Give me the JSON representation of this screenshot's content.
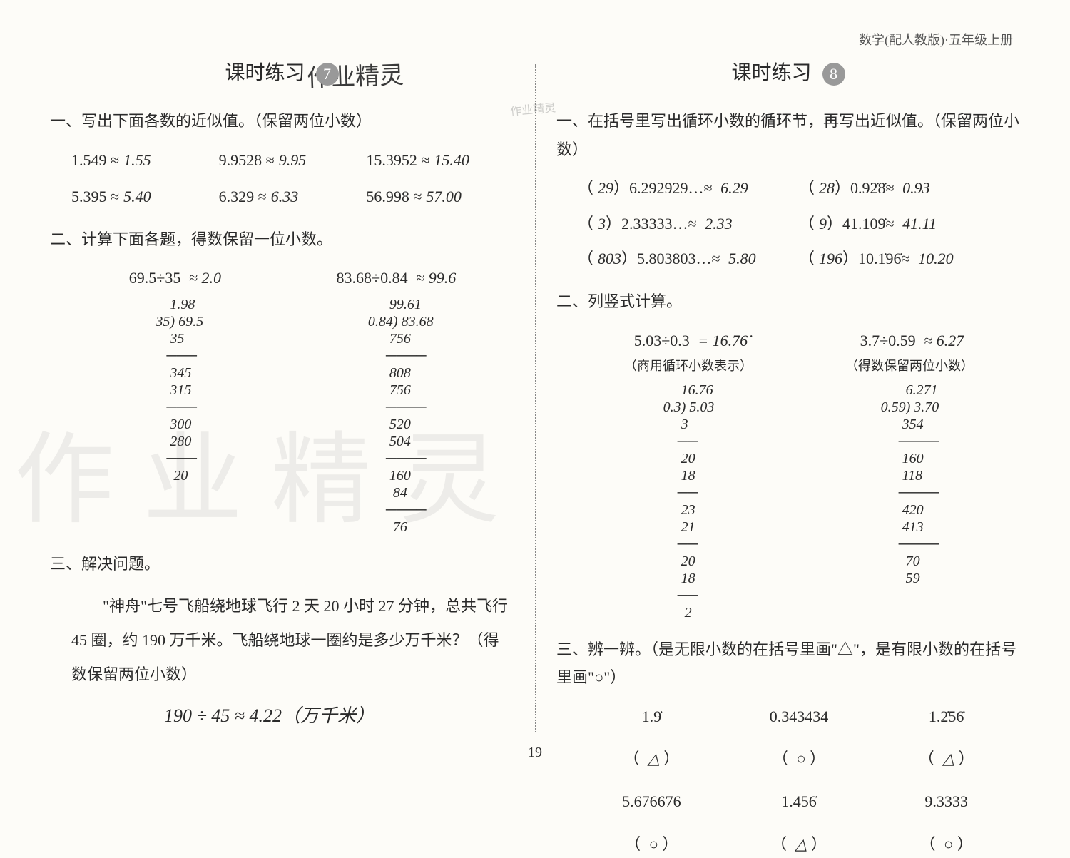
{
  "header": {
    "book_title": "数学(配人教版)·五年级上册"
  },
  "page_number": "19",
  "watermark_text": "作业精灵",
  "handwritten_header": "作业精灵",
  "stamp_text": "作业精灵",
  "left": {
    "lesson_label": "课时练习",
    "lesson_number": "7",
    "section1": {
      "title": "一、写出下面各数的近似值。（保留两位小数）",
      "items": [
        {
          "expr": "1.549 ≈",
          "ans": "1.55"
        },
        {
          "expr": "9.9528 ≈",
          "ans": "9.95"
        },
        {
          "expr": "15.3952 ≈",
          "ans": "15.40"
        },
        {
          "expr": "5.395 ≈",
          "ans": "5.40"
        },
        {
          "expr": "6.329 ≈",
          "ans": "6.33"
        },
        {
          "expr": "56.998 ≈",
          "ans": "57.00"
        }
      ]
    },
    "section2": {
      "title": "二、计算下面各题，得数保留一位小数。",
      "problems": [
        {
          "expr": "69.5÷35",
          "ans": "≈ 2.0",
          "work": "    1.98\n35) 69.5\n    35\n   ───\n    345\n    315\n   ───\n    300\n    280\n   ───\n     20"
        },
        {
          "expr": "83.68÷0.84",
          "ans": "≈ 99.6",
          "work": "      99.61\n0.84) 83.68\n      756\n     ────\n      808\n      756\n     ────\n      520\n      504\n     ────\n      160\n       84\n     ────\n       76"
        }
      ]
    },
    "section3": {
      "title": "三、解决问题。",
      "text": "\"神舟\"七号飞船绕地球飞行 2 天 20 小时 27 分钟，总共飞行 45 圈，约 190 万千米。飞船绕地球一圈约是多少万千米？（得数保留两位小数）",
      "answer": "190 ÷ 45 ≈ 4.22（万千米）"
    }
  },
  "right": {
    "lesson_label": "课时练习",
    "lesson_number": "8",
    "section1": {
      "title": "一、在括号里写出循环小数的循环节，再写出近似值。（保留两位小数）",
      "items": [
        {
          "paren": "29",
          "expr": "6.292929…≈",
          "ans": "6.29"
        },
        {
          "paren": "28",
          "expr": "0.92̇8̇≈",
          "ans": "0.93"
        },
        {
          "paren": "3",
          "expr": "2.33333…≈",
          "ans": "2.33"
        },
        {
          "paren": "9",
          "expr": "41.109̇≈",
          "ans": "41.11"
        },
        {
          "paren": "803",
          "expr": "5.803803…≈",
          "ans": "5.80"
        },
        {
          "paren": "196",
          "expr": "10.1̇96̇≈",
          "ans": "10.20"
        }
      ]
    },
    "section2": {
      "title": "二、列竖式计算。",
      "problems": [
        {
          "expr": "5.03÷0.3",
          "ans": "= 16.76̇",
          "note": "（商用循环小数表示）",
          "work": "     16.76\n0.3) 5.03\n     3\n    ──\n     20\n     18\n    ──\n     23\n     21\n    ──\n     20\n     18\n    ──\n      2"
        },
        {
          "expr": "3.7÷0.59",
          "ans": "≈ 6.27",
          "note": "（得数保留两位小数）",
          "work": "       6.271\n0.59) 3.70\n      354\n     ────\n      160\n      118\n     ────\n      420\n      413\n     ────\n       70\n       59"
        }
      ]
    },
    "section3": {
      "title": "三、辨一辨。（是无限小数的在括号里画\"△\"，是有限小数的在括号里画\"○\"）",
      "items": [
        {
          "num": "1.9̇",
          "ans": "△"
        },
        {
          "num": "0.343434",
          "ans": "○"
        },
        {
          "num": "1.2̇56̇",
          "ans": "△"
        },
        {
          "num": "5.676676",
          "ans": "○"
        },
        {
          "num": "1.456̇",
          "ans": "△"
        },
        {
          "num": "9.3333",
          "ans": "○"
        }
      ]
    }
  }
}
